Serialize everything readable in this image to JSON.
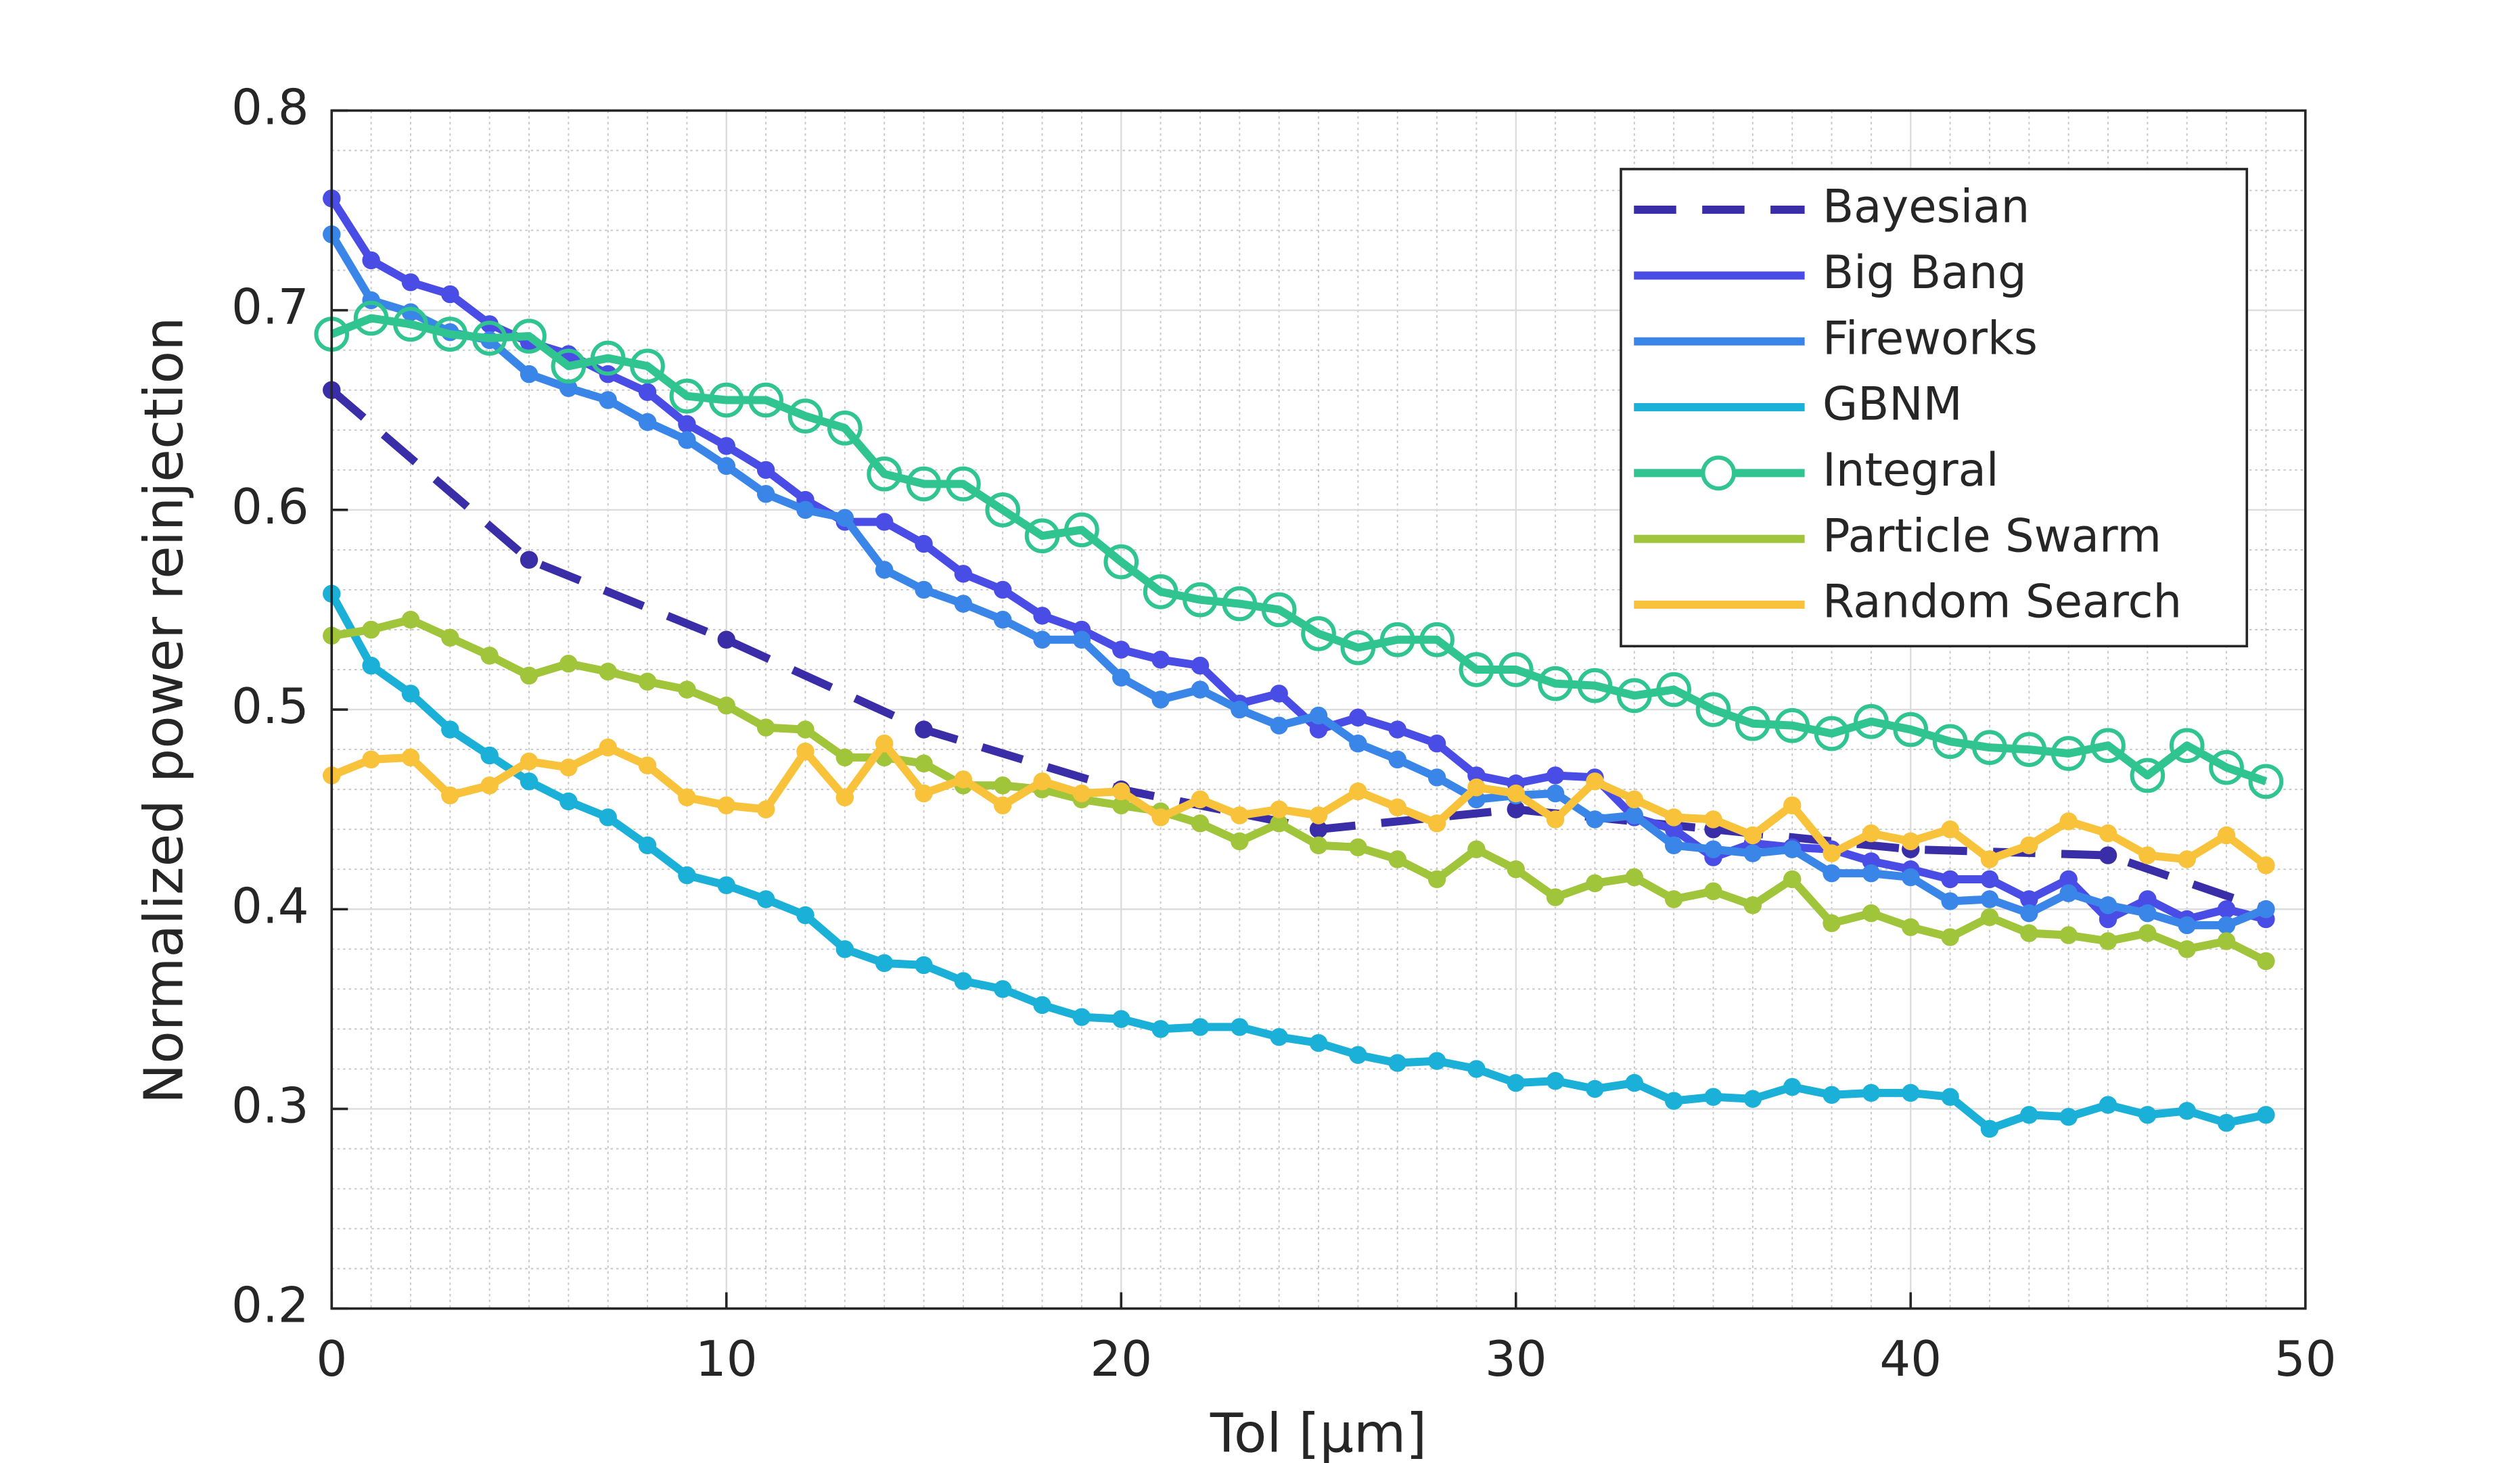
{
  "chart_data": {
    "type": "line",
    "xlabel": "Tol [μm]",
    "ylabel": "Normalized power reinjection",
    "x": [
      0,
      1,
      2,
      3,
      4,
      5,
      6,
      7,
      8,
      9,
      10,
      11,
      12,
      13,
      14,
      15,
      16,
      17,
      18,
      19,
      20,
      21,
      22,
      23,
      24,
      25,
      26,
      27,
      28,
      29,
      30,
      31,
      32,
      33,
      34,
      35,
      36,
      37,
      38,
      39,
      40,
      41,
      42,
      43,
      44,
      45,
      46,
      47,
      48,
      49
    ],
    "xlim": [
      0,
      50
    ],
    "xticks": [
      0,
      10,
      20,
      30,
      40,
      50
    ],
    "ylim": [
      0.2,
      0.8
    ],
    "yticks": [
      0.2,
      0.3,
      0.4,
      0.5,
      0.6,
      0.7,
      0.8
    ],
    "grid": true,
    "minor_grid": true,
    "legend": "northeast",
    "series": [
      {
        "name": "Bayesian",
        "color": "#3a2ea8",
        "linestyle": "dashed",
        "marker": "dot",
        "x": [
          0,
          5,
          10,
          15,
          20,
          25,
          30,
          35,
          40,
          45,
          49
        ],
        "values": [
          0.66,
          0.575,
          0.535,
          0.49,
          0.46,
          0.44,
          0.45,
          0.44,
          0.43,
          0.427,
          0.4
        ]
      },
      {
        "name": "Big Bang",
        "color": "#4a4ce6",
        "linestyle": "solid",
        "marker": "dot",
        "values": [
          0.756,
          0.725,
          0.714,
          0.708,
          0.693,
          0.684,
          0.678,
          0.668,
          0.659,
          0.643,
          0.632,
          0.62,
          0.605,
          0.594,
          0.594,
          0.583,
          0.568,
          0.56,
          0.547,
          0.54,
          0.53,
          0.525,
          0.522,
          0.503,
          0.508,
          0.49,
          0.496,
          0.49,
          0.483,
          0.467,
          0.463,
          0.467,
          0.466,
          0.446,
          0.44,
          0.426,
          0.433,
          0.431,
          0.43,
          0.424,
          0.42,
          0.415,
          0.415,
          0.405,
          0.415,
          0.395,
          0.405,
          0.395,
          0.4,
          0.395
        ]
      },
      {
        "name": "Fireworks",
        "color": "#3a86e8",
        "linestyle": "solid",
        "marker": "dot",
        "values": [
          0.738,
          0.705,
          0.699,
          0.689,
          0.685,
          0.668,
          0.661,
          0.655,
          0.644,
          0.635,
          0.622,
          0.608,
          0.6,
          0.596,
          0.57,
          0.56,
          0.553,
          0.545,
          0.535,
          0.535,
          0.516,
          0.505,
          0.51,
          0.5,
          0.492,
          0.497,
          0.483,
          0.475,
          0.466,
          0.455,
          0.457,
          0.458,
          0.445,
          0.447,
          0.432,
          0.43,
          0.428,
          0.43,
          0.418,
          0.418,
          0.416,
          0.404,
          0.405,
          0.398,
          0.408,
          0.402,
          0.398,
          0.392,
          0.392,
          0.4
        ]
      },
      {
        "name": "GBNM",
        "color": "#1ab0d8",
        "linestyle": "solid",
        "marker": "dot",
        "values": [
          0.558,
          0.522,
          0.508,
          0.49,
          0.477,
          0.464,
          0.454,
          0.446,
          0.432,
          0.417,
          0.412,
          0.405,
          0.397,
          0.38,
          0.373,
          0.372,
          0.364,
          0.36,
          0.352,
          0.346,
          0.345,
          0.34,
          0.341,
          0.341,
          0.336,
          0.333,
          0.327,
          0.323,
          0.324,
          0.32,
          0.313,
          0.314,
          0.31,
          0.313,
          0.304,
          0.306,
          0.305,
          0.311,
          0.307,
          0.308,
          0.308,
          0.306,
          0.29,
          0.297,
          0.296,
          0.302,
          0.297,
          0.299,
          0.293,
          0.297
        ]
      },
      {
        "name": "Integral",
        "color": "#30c490",
        "linestyle": "solid",
        "marker": "open-circle",
        "values": [
          0.688,
          0.696,
          0.693,
          0.688,
          0.686,
          0.687,
          0.672,
          0.676,
          0.672,
          0.657,
          0.655,
          0.655,
          0.647,
          0.641,
          0.618,
          0.613,
          0.613,
          0.6,
          0.587,
          0.59,
          0.574,
          0.559,
          0.555,
          0.553,
          0.55,
          0.538,
          0.531,
          0.535,
          0.535,
          0.52,
          0.52,
          0.513,
          0.512,
          0.507,
          0.51,
          0.5,
          0.493,
          0.492,
          0.488,
          0.494,
          0.49,
          0.484,
          0.481,
          0.48,
          0.478,
          0.482,
          0.467,
          0.482,
          0.471,
          0.464
        ]
      },
      {
        "name": "Particle Swarm",
        "color": "#a0c43a",
        "linestyle": "solid",
        "marker": "dot",
        "values": [
          0.537,
          0.54,
          0.545,
          0.536,
          0.527,
          0.517,
          0.523,
          0.519,
          0.514,
          0.51,
          0.502,
          0.491,
          0.49,
          0.476,
          0.476,
          0.473,
          0.462,
          0.462,
          0.46,
          0.455,
          0.452,
          0.449,
          0.443,
          0.434,
          0.443,
          0.432,
          0.431,
          0.425,
          0.415,
          0.43,
          0.42,
          0.406,
          0.413,
          0.416,
          0.405,
          0.409,
          0.402,
          0.415,
          0.393,
          0.398,
          0.391,
          0.386,
          0.396,
          0.388,
          0.387,
          0.384,
          0.388,
          0.38,
          0.384,
          0.374
        ]
      },
      {
        "name": "Random Search",
        "color": "#f8c23a",
        "linestyle": "solid",
        "marker": "dot",
        "values": [
          0.467,
          0.475,
          0.476,
          0.457,
          0.462,
          0.474,
          0.471,
          0.481,
          0.472,
          0.456,
          0.452,
          0.45,
          0.479,
          0.456,
          0.483,
          0.458,
          0.465,
          0.452,
          0.464,
          0.458,
          0.459,
          0.446,
          0.455,
          0.447,
          0.45,
          0.447,
          0.459,
          0.451,
          0.443,
          0.461,
          0.458,
          0.445,
          0.464,
          0.455,
          0.446,
          0.445,
          0.437,
          0.452,
          0.428,
          0.438,
          0.434,
          0.44,
          0.425,
          0.432,
          0.444,
          0.438,
          0.427,
          0.425,
          0.437,
          0.422
        ]
      }
    ]
  }
}
